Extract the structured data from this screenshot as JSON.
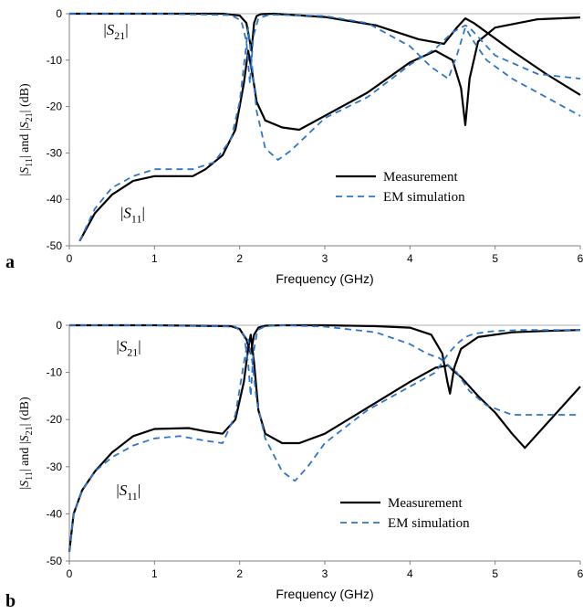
{
  "panels": [
    {
      "letter": "a"
    },
    {
      "letter": "b"
    }
  ],
  "chart_data": [
    {
      "type": "line",
      "panel": "a",
      "xlabel": "Frequency  (GHz)",
      "ylabel": "|S11| and |S21| (dB)",
      "xlim": [
        0,
        6
      ],
      "ylim": [
        -50,
        0
      ],
      "xticks": [
        "0",
        "1",
        "2",
        "3",
        "4",
        "5",
        "6"
      ],
      "yticks": [
        "0",
        "-10",
        "-20",
        "-30",
        "-40",
        "-50"
      ],
      "grid": false,
      "legend_position": "lower-right",
      "annotations": [
        {
          "text": "|S21|",
          "x": 0.4,
          "y": -4.5
        },
        {
          "text": "|S11|",
          "x": 0.6,
          "y": -44
        }
      ],
      "series": [
        {
          "name": "Measurement",
          "color": "#000000",
          "dash": "solid",
          "curve": "S11",
          "x": [
            0.12,
            0.3,
            0.5,
            0.75,
            1.0,
            1.2,
            1.45,
            1.6,
            1.8,
            1.95,
            2.05,
            2.1,
            2.15,
            2.2,
            2.3,
            2.5,
            2.7,
            3.0,
            3.5,
            4.0,
            4.3,
            4.5,
            4.6,
            4.65,
            4.7,
            4.8,
            5.0,
            5.5,
            6.0
          ],
          "y": [
            -49,
            -43,
            -39,
            -36,
            -35,
            -35,
            -35,
            -33.5,
            -30.5,
            -25,
            -15,
            -8,
            -13,
            -19,
            -23,
            -24.5,
            -25,
            -22,
            -17,
            -10.5,
            -8,
            -10,
            -16,
            -24,
            -14,
            -6,
            -3,
            -1.2,
            -0.8
          ]
        },
        {
          "name": "Measurement",
          "color": "#000000",
          "dash": "solid",
          "curve": "S21",
          "x": [
            0.0,
            1.0,
            1.8,
            2.0,
            2.08,
            2.14,
            2.17,
            2.2,
            2.25,
            2.4,
            3.0,
            3.6,
            4.1,
            4.4,
            4.55,
            4.65,
            4.75,
            4.9,
            5.2,
            5.6,
            6.0
          ],
          "y": [
            0,
            0,
            0,
            -0.4,
            -2,
            -8,
            -2,
            -0.5,
            -0.1,
            0,
            -0.7,
            -2.5,
            -5.5,
            -6.5,
            -3,
            -1,
            -2,
            -4,
            -8,
            -13,
            -17.5
          ]
        },
        {
          "name": "EM simulation",
          "color": "#2e75c8",
          "dash": "dashed",
          "curve": "S11",
          "x": [
            0.12,
            0.3,
            0.5,
            0.75,
            1.0,
            1.2,
            1.45,
            1.7,
            1.9,
            2.0,
            2.07,
            2.1,
            2.14,
            2.2,
            2.3,
            2.45,
            2.6,
            3.0,
            3.5,
            4.0,
            4.3,
            4.5,
            4.6,
            4.65,
            4.7,
            4.8,
            5.0,
            5.5,
            6.0
          ],
          "y": [
            -49,
            -42,
            -37.5,
            -35,
            -33.5,
            -33.5,
            -33.5,
            -32,
            -27,
            -19,
            -8,
            -3,
            -10,
            -21,
            -29,
            -31.5,
            -29.5,
            -22.5,
            -18,
            -11,
            -7.5,
            -4,
            -3,
            -2.5,
            -3,
            -5,
            -9,
            -13,
            -14
          ]
        },
        {
          "name": "EM simulation",
          "color": "#2e75c8",
          "dash": "dashed",
          "curve": "S21",
          "x": [
            0.0,
            1.0,
            1.9,
            2.02,
            2.08,
            2.12,
            2.16,
            2.22,
            2.35,
            3.0,
            3.5,
            4.0,
            4.25,
            4.45,
            4.55,
            4.65,
            4.75,
            4.9,
            5.2,
            5.6,
            6.0
          ],
          "y": [
            0,
            0,
            -0.3,
            -1.5,
            -6,
            -15,
            -5,
            -1,
            -0.2,
            -0.5,
            -2,
            -7,
            -11.5,
            -14,
            -9,
            -3,
            -6,
            -10,
            -14,
            -18,
            -22
          ]
        }
      ]
    },
    {
      "type": "line",
      "panel": "b",
      "xlabel": "Frequency  (GHz)",
      "ylabel": "|S11| and |S21| (dB)",
      "xlim": [
        0,
        6
      ],
      "ylim": [
        -50,
        0
      ],
      "xticks": [
        "0",
        "1",
        "2",
        "3",
        "4",
        "5",
        "6"
      ],
      "yticks": [
        "0",
        "-10",
        "-20",
        "-30",
        "-40",
        "-50"
      ],
      "grid": false,
      "legend_position": "lower-right",
      "annotations": [
        {
          "text": "|S21|",
          "x": 0.55,
          "y": -5.5
        },
        {
          "text": "|S11|",
          "x": 0.55,
          "y": -36
        }
      ],
      "series": [
        {
          "name": "Measurement",
          "color": "#000000",
          "dash": "solid",
          "curve": "S11",
          "x": [
            0.0,
            0.05,
            0.15,
            0.3,
            0.5,
            0.75,
            1.0,
            1.4,
            1.6,
            1.8,
            1.95,
            2.05,
            2.1,
            2.13,
            2.17,
            2.22,
            2.3,
            2.5,
            2.7,
            3.0,
            3.5,
            4.0,
            4.3,
            4.45,
            4.5,
            4.6,
            4.8,
            5.0,
            5.2,
            5.35,
            5.5,
            5.75,
            6.0
          ],
          "y": [
            -48,
            -40,
            -35,
            -31,
            -27,
            -23.5,
            -22,
            -21.8,
            -22.5,
            -23,
            -20,
            -12,
            -5,
            -2,
            -8,
            -18,
            -23,
            -25,
            -25,
            -23,
            -17.5,
            -12,
            -9,
            -8.5,
            -9.5,
            -11,
            -15,
            -18.5,
            -23,
            -26,
            -23,
            -18,
            -13
          ]
        },
        {
          "name": "Measurement",
          "color": "#000000",
          "dash": "solid",
          "curve": "S21",
          "x": [
            0.0,
            1.0,
            1.9,
            2.0,
            2.08,
            2.13,
            2.17,
            2.22,
            2.3,
            2.5,
            3.0,
            3.6,
            4.0,
            4.25,
            4.38,
            4.44,
            4.47,
            4.52,
            4.6,
            4.8,
            5.2,
            5.6,
            6.0
          ],
          "y": [
            0,
            0,
            -0.2,
            -0.8,
            -3,
            -6,
            -2,
            -0.5,
            -0.1,
            0,
            0,
            -0.2,
            -0.5,
            -2,
            -6,
            -12,
            -14.5,
            -9,
            -5,
            -2.5,
            -1.5,
            -1.2,
            -1
          ]
        },
        {
          "name": "EM simulation",
          "color": "#2e75c8",
          "dash": "dashed",
          "curve": "S11",
          "x": [
            0.0,
            0.05,
            0.15,
            0.3,
            0.5,
            0.75,
            1.0,
            1.3,
            1.6,
            1.8,
            1.95,
            2.05,
            2.1,
            2.15,
            2.2,
            2.3,
            2.5,
            2.65,
            2.8,
            3.0,
            3.5,
            4.0,
            4.3,
            4.45,
            4.55,
            4.65,
            4.75,
            5.0,
            5.3,
            5.6,
            6.0
          ],
          "y": [
            -48,
            -40,
            -35,
            -31,
            -28,
            -25.5,
            -24,
            -23.5,
            -24.5,
            -25,
            -19,
            -8,
            -3,
            -8,
            -16,
            -24,
            -31,
            -33,
            -30,
            -25,
            -18,
            -13,
            -10,
            -6,
            -4,
            -2.5,
            -1.8,
            -1.2,
            -1,
            -1,
            -1
          ]
        },
        {
          "name": "EM simulation",
          "color": "#2e75c8",
          "dash": "dashed",
          "curve": "S21",
          "x": [
            0.0,
            1.0,
            1.95,
            2.05,
            2.1,
            2.13,
            2.16,
            2.21,
            2.3,
            2.5,
            3.0,
            3.6,
            4.0,
            4.2,
            4.35,
            4.45,
            4.55,
            4.7,
            4.9,
            5.2,
            5.5,
            6.0
          ],
          "y": [
            0,
            0,
            -0.3,
            -2,
            -8,
            -15,
            -6,
            -1,
            -0.2,
            0,
            -0.3,
            -1.5,
            -4,
            -6,
            -7,
            -8.5,
            -10,
            -14,
            -17,
            -19,
            -19,
            -19
          ]
        }
      ]
    }
  ]
}
